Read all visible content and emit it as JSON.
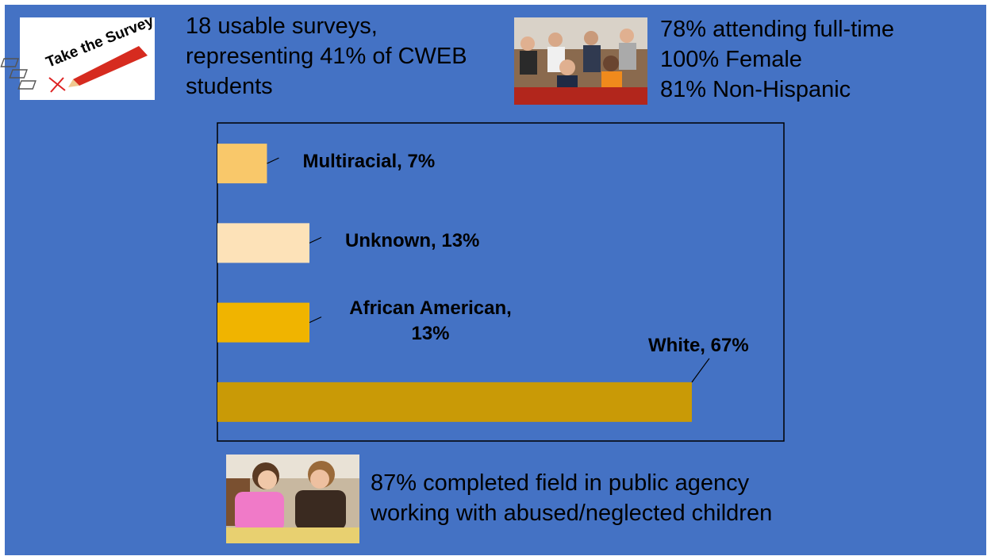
{
  "survey_image": {
    "text": "Take the Survey"
  },
  "summary": {
    "lines": [
      "18 usable surveys,",
      "representing 41% of CWEB",
      "students"
    ]
  },
  "demographics": {
    "lines": [
      "78% attending full-time",
      "100% Female",
      "81% Non-Hispanic"
    ]
  },
  "field": {
    "lines": [
      "87% completed field in public agency",
      "working with abused/neglected children"
    ]
  },
  "chart_data": {
    "type": "hbar",
    "values": [
      7,
      13,
      13,
      67
    ],
    "value_labels": [
      "Multiracial, 7%",
      "Unknown, 13%",
      "African American, 13%",
      "White, 67%"
    ],
    "colors": [
      "#f9c86a",
      "#fde2b8",
      "#f0b400",
      "#c99a06"
    ],
    "xlim": [
      0,
      80
    ]
  }
}
